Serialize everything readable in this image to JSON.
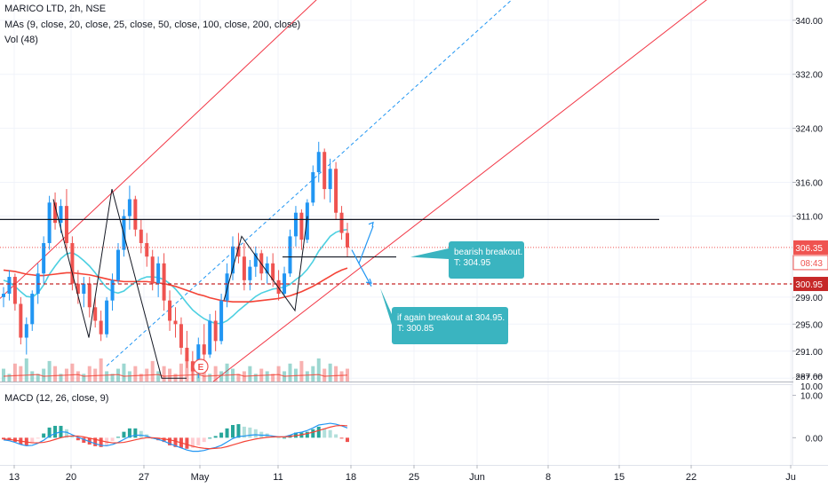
{
  "header": {
    "title": "MARICO LTD, 2h, NSE",
    "ma_legend": "MAs (9, close, 20, close, 25, close, 50, close, 100, close, 200, close)",
    "vol_legend": "Vol (48)",
    "macd_legend": "MACD (12, 26, close, 9)"
  },
  "price_axis": {
    "ticks": [
      "340.00",
      "332.00",
      "324.00",
      "316.00",
      "311.00",
      "299.00",
      "295.00",
      "291.00",
      "287.00"
    ],
    "tick_values": [
      340,
      332,
      324,
      316,
      311,
      299,
      295,
      291,
      287
    ],
    "current_price": "306.35",
    "countdown": "08:43",
    "alert_price": "300.95"
  },
  "macd_axis": {
    "ticks": [
      "10.00",
      "0.00"
    ],
    "tick_values": [
      10,
      0
    ]
  },
  "time_axis": {
    "labels": [
      "13",
      "20",
      "27",
      "May",
      "11",
      "18",
      "25",
      "Jun",
      "8",
      "15",
      "22",
      "Ju"
    ]
  },
  "annotations": {
    "bearish": "bearish breakout.\nT: 304.95",
    "again": "if again breakout at 304.95.\nT: 300.85",
    "event_marker": "E"
  },
  "colors": {
    "up": "#26a69a",
    "up_candle": "#2196f3",
    "down": "#ef5350",
    "ma_fast": "#4dd0e1",
    "ma_slow": "#f44336",
    "callout": "#3ab4c0",
    "channel": "#f23645",
    "dashed_channel": "#2196f3",
    "macd_line": "#2196f3",
    "signal_line": "#f44336"
  },
  "chart_data": {
    "type": "candlestick",
    "symbol": "MARICO LTD",
    "interval": "2h",
    "exchange": "NSE",
    "ohlc": [
      [
        299.0,
        300.5,
        297.5,
        299.5
      ],
      [
        299.5,
        303.0,
        298.5,
        302.0
      ],
      [
        302.0,
        302.5,
        297.0,
        298.0
      ],
      [
        298.0,
        299.0,
        292.0,
        293.0
      ],
      [
        293.0,
        296.0,
        290.5,
        295.0
      ],
      [
        295.0,
        300.0,
        294.0,
        299.5
      ],
      [
        299.5,
        304.0,
        298.0,
        302.5
      ],
      [
        302.5,
        308.0,
        301.0,
        307.0
      ],
      [
        307.0,
        314.0,
        306.0,
        313.0
      ],
      [
        313.0,
        314.5,
        309.0,
        310.0
      ],
      [
        310.0,
        313.5,
        308.5,
        312.5
      ],
      [
        312.5,
        315.0,
        306.0,
        307.0
      ],
      [
        307.0,
        308.0,
        300.0,
        301.0
      ],
      [
        301.0,
        303.0,
        298.0,
        299.5
      ],
      [
        299.5,
        302.0,
        297.5,
        301.0
      ],
      [
        301.0,
        302.0,
        296.0,
        297.5
      ],
      [
        297.5,
        299.0,
        294.5,
        295.5
      ],
      [
        295.5,
        297.0,
        292.5,
        293.5
      ],
      [
        293.5,
        299.0,
        293.0,
        298.5
      ],
      [
        298.5,
        302.5,
        297.0,
        301.5
      ],
      [
        301.5,
        307.0,
        301.0,
        306.0
      ],
      [
        306.0,
        312.0,
        305.0,
        311.0
      ],
      [
        311.0,
        315.5,
        309.0,
        313.5
      ],
      [
        313.5,
        314.0,
        308.0,
        309.0
      ],
      [
        309.0,
        310.5,
        305.5,
        307.0
      ],
      [
        307.0,
        308.5,
        303.5,
        305.0
      ],
      [
        305.0,
        306.0,
        300.0,
        301.0
      ],
      [
        301.0,
        305.0,
        299.0,
        304.0
      ],
      [
        304.0,
        305.5,
        297.0,
        298.5
      ],
      [
        298.5,
        300.0,
        294.0,
        295.5
      ],
      [
        295.5,
        297.5,
        293.0,
        295.0
      ],
      [
        295.0,
        296.0,
        290.5,
        291.5
      ],
      [
        291.5,
        294.0,
        288.5,
        289.5
      ],
      [
        289.5,
        291.0,
        286.5,
        288.0
      ],
      [
        288.0,
        293.0,
        287.0,
        292.0
      ],
      [
        292.0,
        295.0,
        289.0,
        290.5
      ],
      [
        290.5,
        296.5,
        290.0,
        295.5
      ],
      [
        295.5,
        297.0,
        291.0,
        292.5
      ],
      [
        292.5,
        299.5,
        292.0,
        298.5
      ],
      [
        298.5,
        304.0,
        297.5,
        302.5
      ],
      [
        302.5,
        308.0,
        301.5,
        306.5
      ],
      [
        306.5,
        308.5,
        304.0,
        305.0
      ],
      [
        305.0,
        307.0,
        300.0,
        301.5
      ],
      [
        301.5,
        304.5,
        300.0,
        303.5
      ],
      [
        303.5,
        306.5,
        302.0,
        305.5
      ],
      [
        305.5,
        306.0,
        301.5,
        302.5
      ],
      [
        302.5,
        305.0,
        301.0,
        304.0
      ],
      [
        304.0,
        305.5,
        300.5,
        301.5
      ],
      [
        301.5,
        303.0,
        298.5,
        299.5
      ],
      [
        299.5,
        303.5,
        299.0,
        302.5
      ],
      [
        302.5,
        309.0,
        302.0,
        308.0
      ],
      [
        308.0,
        312.5,
        306.5,
        311.5
      ],
      [
        311.5,
        312.0,
        306.0,
        307.5
      ],
      [
        307.5,
        313.5,
        307.0,
        313.0
      ],
      [
        313.0,
        318.5,
        312.5,
        317.5
      ],
      [
        317.5,
        322.0,
        316.0,
        320.5
      ],
      [
        320.5,
        321.0,
        313.5,
        315.0
      ],
      [
        315.0,
        319.5,
        313.0,
        318.0
      ],
      [
        318.0,
        319.0,
        310.5,
        311.5
      ],
      [
        311.5,
        312.5,
        307.5,
        308.5
      ],
      [
        308.5,
        310.0,
        305.0,
        306.35
      ]
    ],
    "ma_fast": [
      301.5,
      301.2,
      300.6,
      299.8,
      299.1,
      299.0,
      299.6,
      300.8,
      302.4,
      303.6,
      304.7,
      305.4,
      305.6,
      305.1,
      304.4,
      303.6,
      302.6,
      301.4,
      300.4,
      299.8,
      299.6,
      299.9,
      300.6,
      301.2,
      301.7,
      302.0,
      302.0,
      301.9,
      301.6,
      301.0,
      300.2,
      299.2,
      298.1,
      297.1,
      296.4,
      295.8,
      295.4,
      295.1,
      295.1,
      295.5,
      296.2,
      297.0,
      297.7,
      298.4,
      299.1,
      299.6,
      299.9,
      300.2,
      300.3,
      300.5,
      300.9,
      301.6,
      302.2,
      303.1,
      304.3,
      305.8,
      306.9,
      308.0,
      308.6,
      308.9,
      309.0
    ],
    "ma_slow": [
      303.0,
      302.9,
      302.8,
      302.6,
      302.4,
      302.3,
      302.2,
      302.2,
      302.3,
      302.4,
      302.5,
      302.6,
      302.6,
      302.5,
      302.4,
      302.3,
      302.1,
      301.9,
      301.7,
      301.5,
      301.4,
      301.3,
      301.3,
      301.3,
      301.3,
      301.3,
      301.2,
      301.1,
      301.0,
      300.8,
      300.6,
      300.3,
      300.0,
      299.7,
      299.4,
      299.2,
      298.9,
      298.7,
      298.5,
      298.4,
      298.3,
      298.3,
      298.3,
      298.3,
      298.4,
      298.5,
      298.6,
      298.7,
      298.8,
      299.0,
      299.2,
      299.5,
      299.8,
      300.2,
      300.6,
      301.1,
      301.6,
      302.1,
      302.6,
      303.0,
      303.3
    ],
    "volume": [
      5,
      3,
      7,
      6,
      9,
      4,
      3,
      5,
      8,
      6,
      3,
      5,
      7,
      4,
      3,
      6,
      5,
      9,
      4,
      3,
      5,
      7,
      4,
      6,
      3,
      5,
      8,
      4,
      6,
      5,
      3,
      7,
      9,
      6,
      4,
      5,
      3,
      6,
      4,
      7,
      5,
      3,
      4,
      6,
      3,
      5,
      4,
      3,
      6,
      4,
      7,
      5,
      8,
      4,
      6,
      9,
      5,
      7,
      6,
      4,
      5
    ],
    "macd": [
      -0.5,
      -0.7,
      -1.1,
      -1.6,
      -1.9,
      -1.8,
      -1.3,
      -0.6,
      0.4,
      1.0,
      1.4,
      1.3,
      0.7,
      0.1,
      -0.4,
      -0.9,
      -1.4,
      -1.8,
      -1.9,
      -1.6,
      -1.1,
      -0.4,
      0.3,
      0.6,
      0.6,
      0.4,
      -0.1,
      -0.4,
      -0.8,
      -1.4,
      -1.9,
      -2.4,
      -2.9,
      -3.2,
      -3.2,
      -3.0,
      -2.6,
      -2.3,
      -1.8,
      -1.0,
      -0.2,
      0.3,
      0.4,
      0.6,
      0.7,
      0.6,
      0.6,
      0.4,
      0.2,
      0.2,
      0.6,
      1.1,
      1.3,
      1.7,
      2.3,
      3.0,
      3.2,
      3.4,
      3.2,
      2.8,
      2.3
    ],
    "macd_signal": [
      -0.3,
      -0.4,
      -0.6,
      -0.8,
      -1.0,
      -1.2,
      -1.2,
      -1.1,
      -0.8,
      -0.4,
      0.0,
      0.3,
      0.4,
      0.4,
      0.2,
      -0.1,
      -0.4,
      -0.7,
      -1.0,
      -1.2,
      -1.2,
      -1.1,
      -0.8,
      -0.5,
      -0.2,
      0.0,
      0.0,
      -0.1,
      -0.3,
      -0.5,
      -0.8,
      -1.2,
      -1.6,
      -2.0,
      -2.3,
      -2.5,
      -2.6,
      -2.5,
      -2.4,
      -2.1,
      -1.7,
      -1.3,
      -0.9,
      -0.6,
      -0.3,
      -0.1,
      0.1,
      0.2,
      0.2,
      0.2,
      0.3,
      0.5,
      0.7,
      1.0,
      1.3,
      1.7,
      2.1,
      2.5,
      2.8,
      2.9,
      2.8
    ],
    "levels": {
      "resistance": 310.5,
      "breakout": 304.95,
      "target": 300.85,
      "current": 306.35,
      "alert": 300.95
    },
    "price_range": [
      286.5,
      343.0
    ],
    "macd_range": [
      -6.0,
      12.0
    ]
  }
}
